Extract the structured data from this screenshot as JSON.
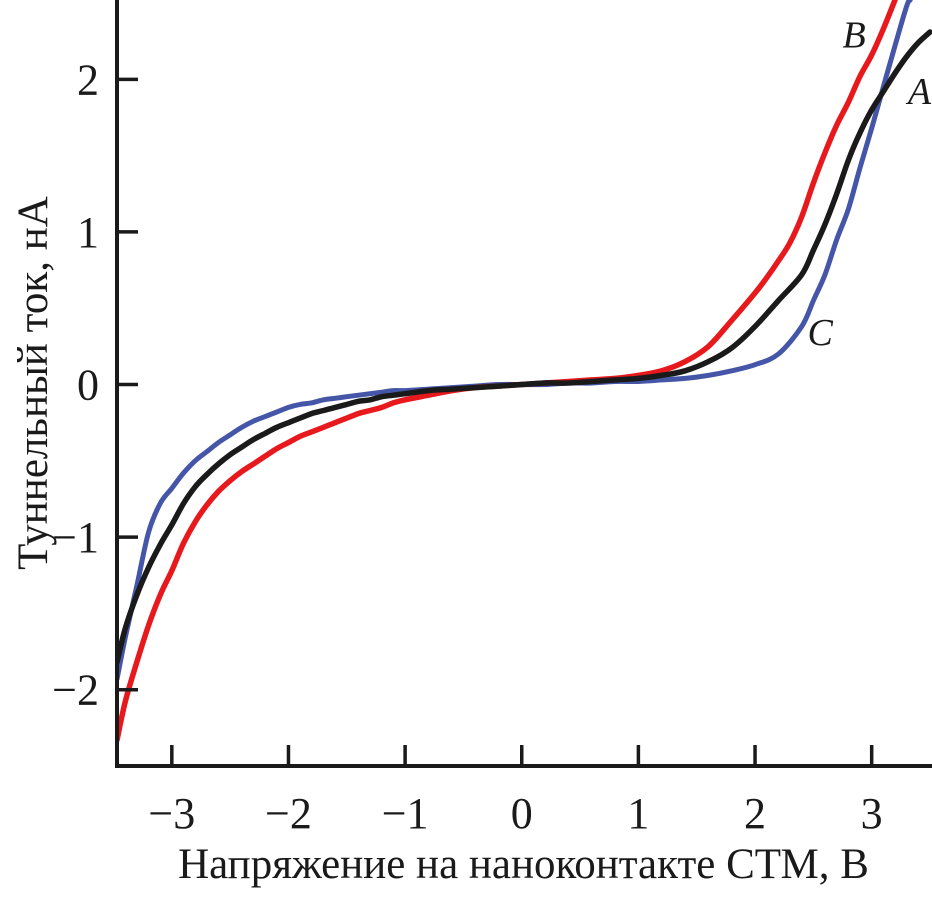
{
  "figure": {
    "background": "#ffffff",
    "axis_color": "#1a1a1a"
  },
  "chart_data": {
    "type": "line",
    "title": "",
    "xlabel": "Напряжение на наноконтакте СТМ, В",
    "ylabel": "Туннельный ток, нА",
    "xlim": [
      -3.47,
      3.5
    ],
    "ylim": [
      -2.5,
      2.52
    ],
    "grid": false,
    "legend": "inline-curve-labels",
    "x_ticks": {
      "values": [
        -3,
        -2,
        -1,
        0,
        1,
        2,
        3
      ],
      "labels": [
        "−3",
        "−2",
        "−1",
        "0",
        "1",
        "2",
        "3"
      ]
    },
    "y_ticks": {
      "values": [
        2,
        1,
        0,
        -1,
        -2
      ],
      "labels": [
        "2",
        "1",
        "0",
        "−1",
        "−2"
      ]
    },
    "series": [
      {
        "name": "A",
        "color": "#1a1a1a",
        "stroke_width": 5.5,
        "label": {
          "v": 3.31,
          "i": 1.84
        },
        "points": [
          [
            -3.47,
            -1.82
          ],
          [
            -3.4,
            -1.6
          ],
          [
            -3.3,
            -1.38
          ],
          [
            -3.2,
            -1.2
          ],
          [
            -3.1,
            -1.05
          ],
          [
            -3,
            -0.92
          ],
          [
            -2.9,
            -0.78
          ],
          [
            -2.8,
            -0.67
          ],
          [
            -2.7,
            -0.59
          ],
          [
            -2.6,
            -0.52
          ],
          [
            -2.5,
            -0.46
          ],
          [
            -2.4,
            -0.41
          ],
          [
            -2.3,
            -0.36
          ],
          [
            -2.2,
            -0.32
          ],
          [
            -2.1,
            -0.28
          ],
          [
            -2,
            -0.25
          ],
          [
            -1.9,
            -0.22
          ],
          [
            -1.8,
            -0.19
          ],
          [
            -1.7,
            -0.17
          ],
          [
            -1.6,
            -0.15
          ],
          [
            -1.5,
            -0.13
          ],
          [
            -1.4,
            -0.11
          ],
          [
            -1.3,
            -0.1
          ],
          [
            -1.2,
            -0.08
          ],
          [
            -1.1,
            -0.07
          ],
          [
            -1,
            -0.06
          ],
          [
            -0.8,
            -0.04
          ],
          [
            -0.6,
            -0.03
          ],
          [
            -0.4,
            -0.02
          ],
          [
            -0.2,
            -0.01
          ],
          [
            0,
            0
          ],
          [
            0.2,
            0.01
          ],
          [
            0.4,
            0.01
          ],
          [
            0.6,
            0.02
          ],
          [
            0.8,
            0.03
          ],
          [
            1,
            0.04
          ],
          [
            1.2,
            0.06
          ],
          [
            1.4,
            0.09
          ],
          [
            1.6,
            0.15
          ],
          [
            1.8,
            0.24
          ],
          [
            2,
            0.38
          ],
          [
            2.2,
            0.55
          ],
          [
            2.4,
            0.72
          ],
          [
            2.5,
            0.88
          ],
          [
            2.6,
            1.05
          ],
          [
            2.7,
            1.25
          ],
          [
            2.8,
            1.47
          ],
          [
            2.9,
            1.65
          ],
          [
            3,
            1.8
          ],
          [
            3.1,
            1.92
          ],
          [
            3.2,
            2.04
          ],
          [
            3.3,
            2.15
          ],
          [
            3.4,
            2.24
          ],
          [
            3.5,
            2.31
          ]
        ]
      },
      {
        "name": "B",
        "color": "#e8191d",
        "stroke_width": 5.5,
        "label": {
          "v": 2.75,
          "i": 2.21
        },
        "points": [
          [
            -3.47,
            -2.33
          ],
          [
            -3.4,
            -2.08
          ],
          [
            -3.3,
            -1.82
          ],
          [
            -3.2,
            -1.58
          ],
          [
            -3.1,
            -1.38
          ],
          [
            -3,
            -1.22
          ],
          [
            -2.9,
            -1.04
          ],
          [
            -2.8,
            -0.9
          ],
          [
            -2.7,
            -0.79
          ],
          [
            -2.6,
            -0.7
          ],
          [
            -2.5,
            -0.63
          ],
          [
            -2.4,
            -0.57
          ],
          [
            -2.3,
            -0.52
          ],
          [
            -2.2,
            -0.47
          ],
          [
            -2.1,
            -0.42
          ],
          [
            -2,
            -0.38
          ],
          [
            -1.9,
            -0.34
          ],
          [
            -1.8,
            -0.31
          ],
          [
            -1.7,
            -0.28
          ],
          [
            -1.6,
            -0.25
          ],
          [
            -1.5,
            -0.22
          ],
          [
            -1.4,
            -0.19
          ],
          [
            -1.3,
            -0.17
          ],
          [
            -1.2,
            -0.15
          ],
          [
            -1.1,
            -0.12
          ],
          [
            -1,
            -0.1
          ],
          [
            -0.8,
            -0.07
          ],
          [
            -0.6,
            -0.04
          ],
          [
            -0.4,
            -0.02
          ],
          [
            -0.2,
            -0.01
          ],
          [
            0,
            0
          ],
          [
            0.2,
            0.01
          ],
          [
            0.4,
            0.02
          ],
          [
            0.6,
            0.03
          ],
          [
            0.8,
            0.04
          ],
          [
            1,
            0.06
          ],
          [
            1.2,
            0.09
          ],
          [
            1.4,
            0.15
          ],
          [
            1.6,
            0.25
          ],
          [
            1.8,
            0.42
          ],
          [
            2,
            0.6
          ],
          [
            2.1,
            0.7
          ],
          [
            2.2,
            0.81
          ],
          [
            2.3,
            0.93
          ],
          [
            2.4,
            1.1
          ],
          [
            2.5,
            1.32
          ],
          [
            2.6,
            1.52
          ],
          [
            2.7,
            1.7
          ],
          [
            2.8,
            1.85
          ],
          [
            2.9,
            2.02
          ],
          [
            3,
            2.16
          ],
          [
            3.1,
            2.33
          ],
          [
            3.2,
            2.52
          ]
        ]
      },
      {
        "name": "C",
        "color": "#4556a8",
        "stroke_width": 5,
        "label": {
          "v": 2.45,
          "i": 0.26
        },
        "points": [
          [
            -3.47,
            -1.93
          ],
          [
            -3.4,
            -1.66
          ],
          [
            -3.3,
            -1.32
          ],
          [
            -3.2,
            -0.97
          ],
          [
            -3.1,
            -0.78
          ],
          [
            -3,
            -0.68
          ],
          [
            -2.9,
            -0.58
          ],
          [
            -2.8,
            -0.5
          ],
          [
            -2.7,
            -0.44
          ],
          [
            -2.6,
            -0.38
          ],
          [
            -2.5,
            -0.33
          ],
          [
            -2.4,
            -0.28
          ],
          [
            -2.3,
            -0.24
          ],
          [
            -2.2,
            -0.21
          ],
          [
            -2.1,
            -0.18
          ],
          [
            -2,
            -0.15
          ],
          [
            -1.9,
            -0.13
          ],
          [
            -1.8,
            -0.12
          ],
          [
            -1.7,
            -0.1
          ],
          [
            -1.6,
            -0.09
          ],
          [
            -1.5,
            -0.08
          ],
          [
            -1.4,
            -0.07
          ],
          [
            -1.3,
            -0.06
          ],
          [
            -1.2,
            -0.05
          ],
          [
            -1.1,
            -0.04
          ],
          [
            -1,
            -0.04
          ],
          [
            -0.8,
            -0.03
          ],
          [
            -0.6,
            -0.02
          ],
          [
            -0.4,
            -0.01
          ],
          [
            -0.2,
            0
          ],
          [
            0,
            0
          ],
          [
            0.2,
            0
          ],
          [
            0.4,
            0.01
          ],
          [
            0.6,
            0.01
          ],
          [
            0.8,
            0.02
          ],
          [
            1,
            0.02
          ],
          [
            1.2,
            0.03
          ],
          [
            1.4,
            0.04
          ],
          [
            1.6,
            0.06
          ],
          [
            1.8,
            0.09
          ],
          [
            2,
            0.13
          ],
          [
            2.2,
            0.2
          ],
          [
            2.4,
            0.38
          ],
          [
            2.5,
            0.55
          ],
          [
            2.6,
            0.72
          ],
          [
            2.7,
            0.95
          ],
          [
            2.8,
            1.15
          ],
          [
            2.9,
            1.42
          ],
          [
            3,
            1.68
          ],
          [
            3.1,
            1.95
          ],
          [
            3.2,
            2.22
          ],
          [
            3.3,
            2.48
          ],
          [
            3.33,
            2.52
          ]
        ]
      }
    ]
  }
}
